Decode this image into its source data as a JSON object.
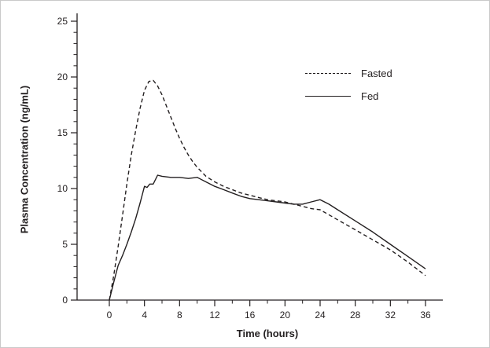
{
  "chart_data": {
    "type": "line",
    "title": "",
    "xlabel": "Time (hours)",
    "ylabel": "Plasma Concentration (ng/mL)",
    "xlim": [
      0,
      36
    ],
    "ylim": [
      0,
      25
    ],
    "x_ticks": [
      0,
      4,
      8,
      12,
      16,
      20,
      24,
      28,
      32,
      36
    ],
    "y_ticks": [
      0,
      5,
      10,
      15,
      20,
      25
    ],
    "x_minor_step": 2,
    "y_minor_step": 1,
    "grid": false,
    "axis_color": "#231f20",
    "legend_position": "upper-right-inside",
    "legend": [
      {
        "label": "Fasted",
        "style": "dashed"
      },
      {
        "label": "Fed",
        "style": "solid"
      }
    ],
    "series": [
      {
        "name": "Fasted",
        "line_style": "dashed",
        "color": "#231f20",
        "x": [
          0,
          0.5,
          1,
          1.5,
          2,
          2.5,
          3,
          3.5,
          4,
          4.5,
          5,
          5.5,
          6,
          6.5,
          7,
          7.5,
          8,
          8.5,
          9,
          9.5,
          10,
          11,
          12,
          13,
          14,
          15,
          16,
          17,
          18,
          19,
          20,
          21,
          22,
          23,
          24,
          26,
          28,
          30,
          32,
          34,
          36
        ],
        "y": [
          0,
          2.2,
          4.8,
          7.6,
          10.4,
          13.0,
          15.2,
          17.2,
          18.8,
          19.6,
          19.7,
          19.2,
          18.4,
          17.4,
          16.4,
          15.4,
          14.5,
          13.7,
          13.0,
          12.4,
          11.9,
          11.1,
          10.6,
          10.2,
          9.9,
          9.6,
          9.4,
          9.2,
          9.0,
          8.9,
          8.8,
          8.6,
          8.4,
          8.2,
          8.1,
          7.2,
          6.3,
          5.4,
          4.5,
          3.4,
          2.2
        ]
      },
      {
        "name": "Fed",
        "line_style": "solid",
        "color": "#231f20",
        "x": [
          0,
          0.5,
          1,
          1.5,
          2,
          2.5,
          3,
          3.5,
          4,
          4.3,
          4.6,
          5,
          5.5,
          6,
          7,
          8,
          9,
          10,
          11,
          12,
          13,
          14,
          15,
          16,
          17,
          18,
          19,
          20,
          21,
          22,
          23,
          24,
          25,
          26,
          28,
          30,
          32,
          34,
          36
        ],
        "y": [
          0,
          1.6,
          3.1,
          4.0,
          5.0,
          6.1,
          7.3,
          8.7,
          10.2,
          10.1,
          10.4,
          10.4,
          11.2,
          11.1,
          11.0,
          11.0,
          10.9,
          11.0,
          10.6,
          10.2,
          9.9,
          9.6,
          9.3,
          9.1,
          9.0,
          8.9,
          8.8,
          8.7,
          8.6,
          8.6,
          8.8,
          9.0,
          8.6,
          8.1,
          7.1,
          6.1,
          5.0,
          3.9,
          2.8
        ]
      }
    ]
  }
}
